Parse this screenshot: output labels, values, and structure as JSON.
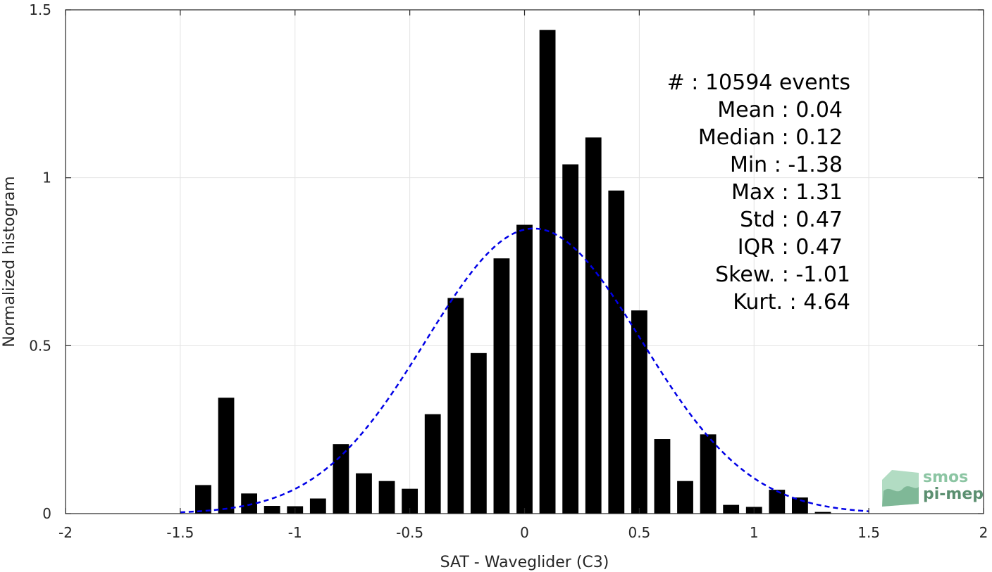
{
  "chart_data": {
    "type": "bar",
    "xlabel": "SAT - Waveglider (C3)",
    "ylabel": "Normalized histogram",
    "xlim": [
      -2,
      2
    ],
    "ylim": [
      0,
      1.5
    ],
    "xticks": [
      -2,
      -1.5,
      -1,
      -0.5,
      0,
      0.5,
      1,
      1.5,
      2
    ],
    "xtick_labels": [
      "-2",
      "-1.5",
      "-1",
      "-0.5",
      "0",
      "0.5",
      "1",
      "1.5",
      "2"
    ],
    "yticks": [
      0,
      0.5,
      1,
      1.5
    ],
    "ytick_labels": [
      "0",
      "0.5",
      "1",
      "1.5"
    ],
    "grid": true,
    "bar_color": "#000000",
    "bar_width": 0.07,
    "bars": {
      "x": [
        -1.4,
        -1.3,
        -1.2,
        -1.1,
        -1.0,
        -0.9,
        -0.8,
        -0.7,
        -0.6,
        -0.5,
        -0.4,
        -0.3,
        -0.2,
        -0.1,
        0.0,
        0.1,
        0.2,
        0.3,
        0.4,
        0.5,
        0.6,
        0.7,
        0.8,
        0.9,
        1.0,
        1.1,
        1.2,
        1.3
      ],
      "values": [
        0.085,
        0.345,
        0.06,
        0.023,
        0.022,
        0.045,
        0.207,
        0.12,
        0.097,
        0.074,
        0.296,
        0.642,
        0.478,
        0.76,
        0.86,
        1.44,
        1.04,
        1.12,
        0.962,
        0.605,
        0.222,
        0.097,
        0.236,
        0.026,
        0.02,
        0.071,
        0.048,
        0.005
      ]
    },
    "fit_curve": {
      "type": "normal",
      "mean": 0.04,
      "std": 0.47,
      "x_range": [
        -1.5,
        1.5
      ],
      "color": "#0000e6",
      "style": "dashed"
    },
    "stats": [
      {
        "label": "#  : 10594 events"
      },
      {
        "label": "Mean : 0.04"
      },
      {
        "label": "Median : 0.12"
      },
      {
        "label": "Min : -1.38"
      },
      {
        "label": "Max : 1.31"
      },
      {
        "label": "Std : 0.47"
      },
      {
        "label": "IQR : 0.47"
      },
      {
        "label": "Skew. : -1.01"
      },
      {
        "label": "Kurt. : 4.64"
      }
    ]
  },
  "logo": {
    "line1": "smos",
    "line2": "pi-mep",
    "color": "#6aa884"
  }
}
